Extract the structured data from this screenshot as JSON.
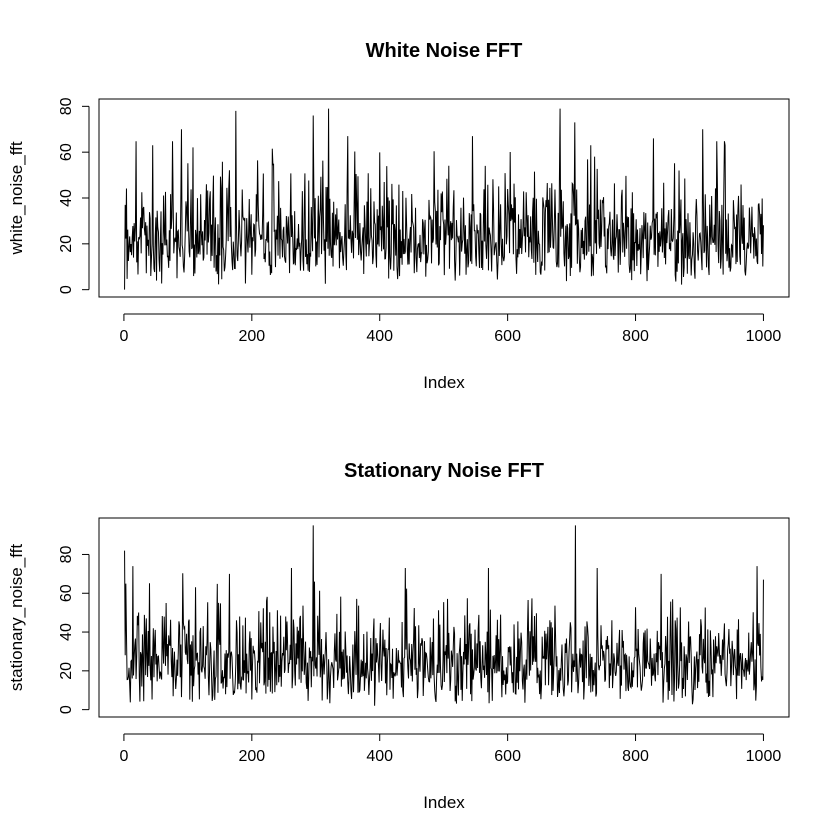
{
  "chart_data": [
    {
      "type": "line",
      "title": "White Noise FFT",
      "xlabel": "Index",
      "ylabel": "white_noise_fft",
      "xlim": [
        1,
        1000
      ],
      "ylim": [
        0,
        80
      ],
      "xticks": [
        0,
        200,
        400,
        600,
        800,
        1000
      ],
      "yticks": [
        0,
        20,
        40,
        60,
        80
      ],
      "line_color": "#000000",
      "grid": false,
      "series": [
        {
          "n": 1000,
          "first": 0,
          "approx_mean": 25,
          "approx_range": [
            0,
            79
          ],
          "peaks": [
            [
              2,
              37
            ],
            [
              45,
              63
            ],
            [
              90,
              70
            ],
            [
              175,
              78
            ],
            [
              296,
              76
            ],
            [
              320,
              79
            ],
            [
              350,
              67
            ],
            [
              545,
              67
            ],
            [
              682,
              79
            ],
            [
              705,
              73
            ],
            [
              730,
              63
            ],
            [
              828,
              66
            ],
            [
              905,
              70
            ],
            [
              940,
              63
            ]
          ]
        }
      ]
    },
    {
      "type": "line",
      "title": "Stationary Noise FFT",
      "xlabel": "Index",
      "ylabel": "stationary_noise_fft",
      "xlim": [
        1,
        1000
      ],
      "ylim": [
        0,
        95
      ],
      "xticks": [
        0,
        200,
        400,
        600,
        800,
        1000
      ],
      "yticks": [
        0,
        20,
        40,
        60,
        80
      ],
      "line_color": "#000000",
      "grid": false,
      "series": [
        {
          "n": 1000,
          "first": 82,
          "approx_mean": 26,
          "approx_range": [
            1,
            95
          ],
          "peaks": [
            [
              1,
              82
            ],
            [
              14,
              74
            ],
            [
              165,
              70
            ],
            [
              262,
              73
            ],
            [
              296,
              95
            ],
            [
              440,
              73
            ],
            [
              570,
              73
            ],
            [
              706,
              95
            ],
            [
              740,
              73
            ],
            [
              840,
              70
            ],
            [
              990,
              74
            ],
            [
              1000,
              67
            ]
          ]
        }
      ]
    }
  ]
}
